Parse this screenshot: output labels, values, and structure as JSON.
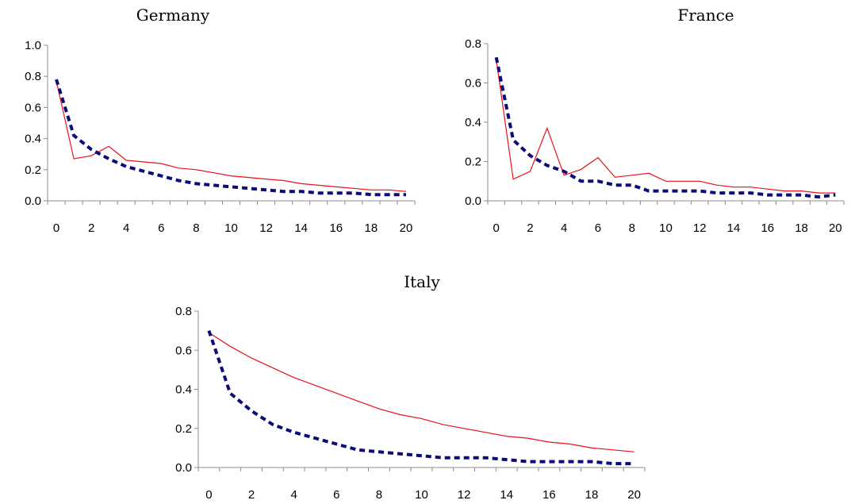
{
  "chart_data": [
    {
      "type": "line",
      "title": "Germany",
      "xlabel": "",
      "ylabel": "",
      "x": [
        0,
        1,
        2,
        3,
        4,
        5,
        6,
        7,
        8,
        9,
        10,
        11,
        12,
        13,
        14,
        15,
        16,
        17,
        18,
        19,
        20
      ],
      "x_ticks": [
        0,
        2,
        4,
        6,
        8,
        10,
        12,
        14,
        16,
        18,
        20
      ],
      "y_ticks": [
        "0.0",
        "0.2",
        "0.4",
        "0.6",
        "0.8",
        "1.0"
      ],
      "ylim": [
        0,
        1.0
      ],
      "grid": false,
      "series": [
        {
          "style": "solid",
          "color": "#e8101a",
          "values": [
            0.77,
            0.27,
            0.29,
            0.35,
            0.26,
            0.25,
            0.24,
            0.21,
            0.2,
            0.18,
            0.16,
            0.15,
            0.14,
            0.13,
            0.11,
            0.1,
            0.09,
            0.08,
            0.07,
            0.07,
            0.06
          ]
        },
        {
          "style": "dashed",
          "color": "#0b0b7a",
          "values": [
            0.78,
            0.42,
            0.33,
            0.27,
            0.22,
            0.19,
            0.16,
            0.13,
            0.11,
            0.1,
            0.09,
            0.08,
            0.07,
            0.06,
            0.06,
            0.05,
            0.05,
            0.05,
            0.04,
            0.04,
            0.04
          ]
        }
      ]
    },
    {
      "type": "line",
      "title": "France",
      "xlabel": "",
      "ylabel": "",
      "x": [
        0,
        1,
        2,
        3,
        4,
        5,
        6,
        7,
        8,
        9,
        10,
        11,
        12,
        13,
        14,
        15,
        16,
        17,
        18,
        19,
        20
      ],
      "x_ticks": [
        0,
        2,
        4,
        6,
        8,
        10,
        12,
        14,
        16,
        18,
        20
      ],
      "y_ticks": [
        "0.0",
        "0.2",
        "0.4",
        "0.6",
        "0.8"
      ],
      "ylim": [
        0,
        0.8
      ],
      "grid": false,
      "series": [
        {
          "style": "solid",
          "color": "#e8101a",
          "values": [
            0.72,
            0.11,
            0.15,
            0.37,
            0.13,
            0.16,
            0.22,
            0.12,
            0.13,
            0.14,
            0.1,
            0.1,
            0.1,
            0.08,
            0.07,
            0.07,
            0.06,
            0.05,
            0.05,
            0.04,
            0.04
          ]
        },
        {
          "style": "dashed",
          "color": "#0b0b7a",
          "values": [
            0.73,
            0.31,
            0.23,
            0.18,
            0.15,
            0.1,
            0.1,
            0.08,
            0.08,
            0.05,
            0.05,
            0.05,
            0.05,
            0.04,
            0.04,
            0.04,
            0.03,
            0.03,
            0.03,
            0.02,
            0.03
          ]
        }
      ]
    },
    {
      "type": "line",
      "title": "Italy",
      "xlabel": "",
      "ylabel": "",
      "x": [
        0,
        1,
        2,
        3,
        4,
        5,
        6,
        7,
        8,
        9,
        10,
        11,
        12,
        13,
        14,
        15,
        16,
        17,
        18,
        19,
        20
      ],
      "x_ticks": [
        0,
        2,
        4,
        6,
        8,
        10,
        12,
        14,
        16,
        18,
        20
      ],
      "y_ticks": [
        "0.0",
        "0.2",
        "0.4",
        "0.6",
        "0.8"
      ],
      "ylim": [
        0,
        0.8
      ],
      "grid": false,
      "series": [
        {
          "style": "solid",
          "color": "#e8101a",
          "values": [
            0.69,
            0.62,
            0.56,
            0.51,
            0.46,
            0.42,
            0.38,
            0.34,
            0.3,
            0.27,
            0.25,
            0.22,
            0.2,
            0.18,
            0.16,
            0.15,
            0.13,
            0.12,
            0.1,
            0.09,
            0.08
          ]
        },
        {
          "style": "dashed",
          "color": "#0b0b7a",
          "values": [
            0.7,
            0.38,
            0.29,
            0.22,
            0.18,
            0.15,
            0.12,
            0.09,
            0.08,
            0.07,
            0.06,
            0.05,
            0.05,
            0.05,
            0.04,
            0.03,
            0.03,
            0.03,
            0.03,
            0.02,
            0.02
          ]
        }
      ]
    }
  ]
}
